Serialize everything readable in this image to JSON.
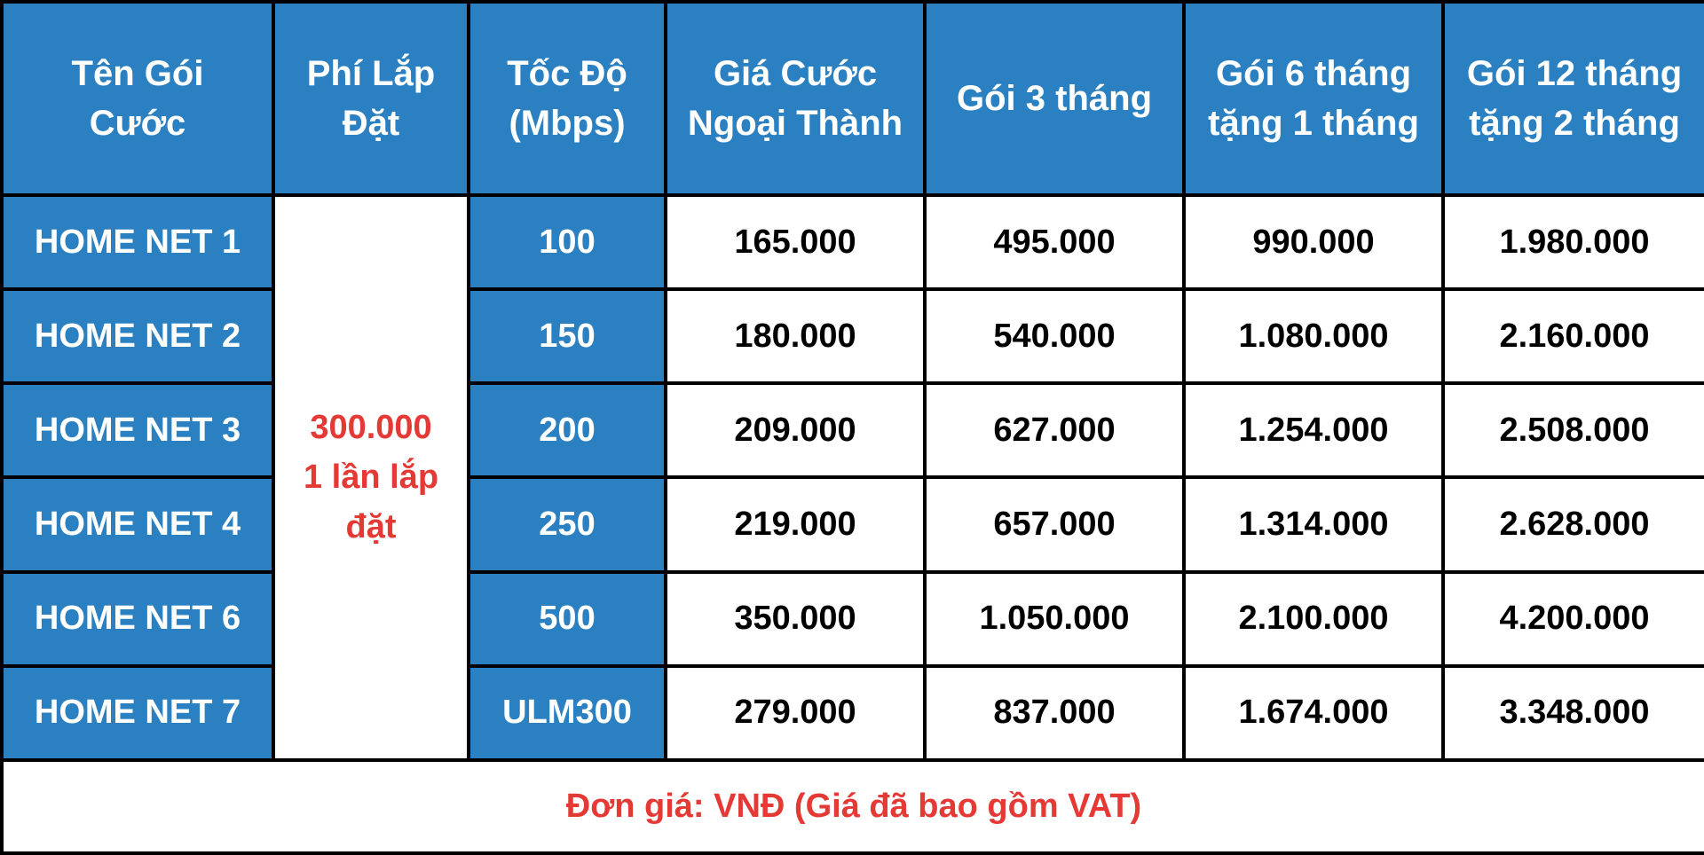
{
  "colors": {
    "header_blue": "#2b80c2",
    "border": "#000000",
    "accent_red": "#e53935",
    "text_dark": "#000000",
    "text_light": "#ffffff"
  },
  "headers": [
    [
      "Tên Gói",
      "Cước"
    ],
    [
      "Phí Lắp",
      "Đặt"
    ],
    [
      "Tốc Độ",
      "(Mbps)"
    ],
    [
      "Giá Cước",
      "Ngoại Thành"
    ],
    [
      "Gói 3 tháng"
    ],
    [
      "Gói 6 tháng",
      "tặng 1 tháng"
    ],
    [
      "Gói 12 tháng",
      "tặng 2 tháng"
    ]
  ],
  "installation_fee": [
    "300.000",
    "1 lần lắp",
    "đặt"
  ],
  "rows": [
    {
      "name": "HOME NET 1",
      "speed": "100",
      "monthly": "165.000",
      "m3": "495.000",
      "m6": "990.000",
      "m12": "1.980.000"
    },
    {
      "name": "HOME NET 2",
      "speed": "150",
      "monthly": "180.000",
      "m3": "540.000",
      "m6": "1.080.000",
      "m12": "2.160.000"
    },
    {
      "name": "HOME NET 3",
      "speed": "200",
      "monthly": "209.000",
      "m3": "627.000",
      "m6": "1.254.000",
      "m12": "2.508.000"
    },
    {
      "name": "HOME NET 4",
      "speed": "250",
      "monthly": "219.000",
      "m3": "657.000",
      "m6": "1.314.000",
      "m12": "2.628.000"
    },
    {
      "name": "HOME NET 6",
      "speed": "500",
      "monthly": "350.000",
      "m3": "1.050.000",
      "m6": "2.100.000",
      "m12": "4.200.000"
    },
    {
      "name": "HOME NET 7",
      "speed": "ULM300",
      "monthly": "279.000",
      "m3": "837.000",
      "m6": "1.674.000",
      "m12": "3.348.000"
    }
  ],
  "note": "Đơn giá: VNĐ (Giá đã bao gồm VAT)"
}
